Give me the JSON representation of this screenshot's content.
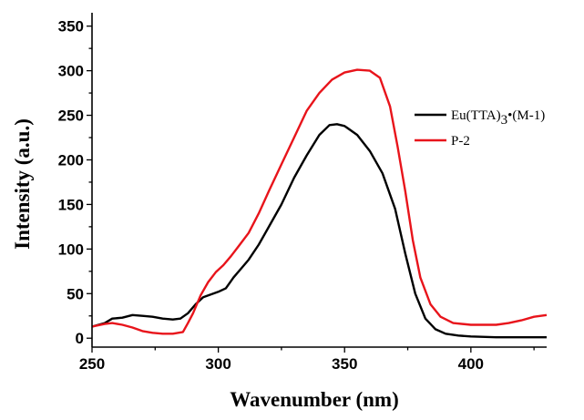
{
  "chart_data": {
    "type": "line",
    "xlabel": "Wavenumber (nm)",
    "ylabel": "Intensity (a.u.)",
    "xlim": [
      250,
      430
    ],
    "ylim": [
      -10,
      365
    ],
    "xticks": [
      250,
      300,
      350,
      400
    ],
    "yticks": [
      0,
      50,
      100,
      150,
      200,
      250,
      300,
      350
    ],
    "xtick_labels": [
      "250",
      "300",
      "350",
      "400"
    ],
    "ytick_labels": [
      "0",
      "50",
      "100",
      "150",
      "200",
      "250",
      "300",
      "350"
    ],
    "legend_position": "right",
    "series": [
      {
        "name_parts": [
          "Eu(TTA)",
          "3",
          "•(M-1)"
        ],
        "color": "#000000",
        "points": [
          [
            250,
            13
          ],
          [
            255,
            17
          ],
          [
            258,
            22
          ],
          [
            262,
            23
          ],
          [
            266,
            26
          ],
          [
            270,
            25
          ],
          [
            274,
            24
          ],
          [
            278,
            22
          ],
          [
            282,
            21
          ],
          [
            285,
            22
          ],
          [
            288,
            28
          ],
          [
            291,
            38
          ],
          [
            294,
            46
          ],
          [
            297,
            49
          ],
          [
            300,
            52
          ],
          [
            303,
            56
          ],
          [
            306,
            68
          ],
          [
            309,
            78
          ],
          [
            312,
            88
          ],
          [
            316,
            105
          ],
          [
            320,
            125
          ],
          [
            325,
            150
          ],
          [
            330,
            180
          ],
          [
            335,
            205
          ],
          [
            340,
            228
          ],
          [
            344,
            239
          ],
          [
            347,
            240
          ],
          [
            350,
            238
          ],
          [
            355,
            228
          ],
          [
            360,
            210
          ],
          [
            365,
            185
          ],
          [
            370,
            145
          ],
          [
            374,
            95
          ],
          [
            378,
            50
          ],
          [
            382,
            22
          ],
          [
            386,
            10
          ],
          [
            390,
            5
          ],
          [
            395,
            3
          ],
          [
            400,
            2
          ],
          [
            410,
            1
          ],
          [
            420,
            1
          ],
          [
            430,
            1
          ]
        ]
      },
      {
        "name": "P-2",
        "color": "#e8141b",
        "points": [
          [
            250,
            13
          ],
          [
            255,
            16
          ],
          [
            258,
            17
          ],
          [
            262,
            15
          ],
          [
            266,
            12
          ],
          [
            270,
            8
          ],
          [
            274,
            6
          ],
          [
            278,
            5
          ],
          [
            282,
            5
          ],
          [
            286,
            7
          ],
          [
            288,
            17
          ],
          [
            290,
            28
          ],
          [
            293,
            48
          ],
          [
            296,
            63
          ],
          [
            299,
            74
          ],
          [
            302,
            82
          ],
          [
            305,
            92
          ],
          [
            308,
            103
          ],
          [
            312,
            118
          ],
          [
            316,
            140
          ],
          [
            320,
            165
          ],
          [
            325,
            195
          ],
          [
            330,
            225
          ],
          [
            335,
            255
          ],
          [
            340,
            275
          ],
          [
            345,
            290
          ],
          [
            350,
            298
          ],
          [
            355,
            301
          ],
          [
            360,
            300
          ],
          [
            364,
            292
          ],
          [
            368,
            260
          ],
          [
            371,
            215
          ],
          [
            374,
            165
          ],
          [
            377,
            110
          ],
          [
            380,
            68
          ],
          [
            384,
            38
          ],
          [
            388,
            24
          ],
          [
            393,
            17
          ],
          [
            400,
            15
          ],
          [
            410,
            15
          ],
          [
            415,
            17
          ],
          [
            420,
            20
          ],
          [
            425,
            24
          ],
          [
            430,
            26
          ]
        ]
      }
    ]
  }
}
